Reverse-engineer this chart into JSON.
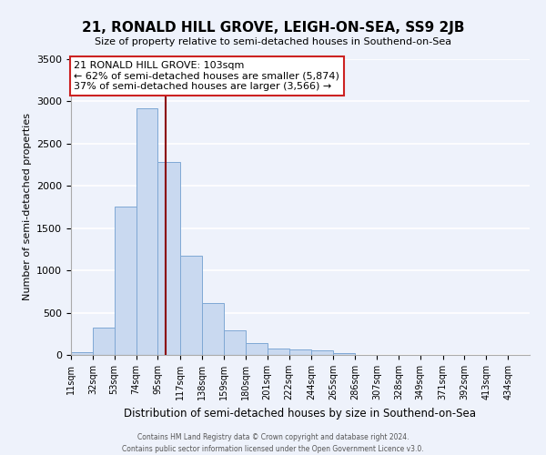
{
  "title": "21, RONALD HILL GROVE, LEIGH-ON-SEA, SS9 2JB",
  "subtitle": "Size of property relative to semi-detached houses in Southend-on-Sea",
  "xlabel": "Distribution of semi-detached houses by size in Southend-on-Sea",
  "ylabel": "Number of semi-detached properties",
  "bin_labels": [
    "11sqm",
    "32sqm",
    "53sqm",
    "74sqm",
    "95sqm",
    "117sqm",
    "138sqm",
    "159sqm",
    "180sqm",
    "201sqm",
    "222sqm",
    "244sqm",
    "265sqm",
    "286sqm",
    "307sqm",
    "328sqm",
    "349sqm",
    "371sqm",
    "392sqm",
    "413sqm",
    "434sqm"
  ],
  "bin_edges": [
    11,
    32,
    53,
    74,
    95,
    117,
    138,
    159,
    180,
    201,
    222,
    244,
    265,
    286,
    307,
    328,
    349,
    371,
    392,
    413,
    434,
    455
  ],
  "bar_heights": [
    30,
    320,
    1760,
    2920,
    2280,
    1170,
    610,
    290,
    140,
    75,
    60,
    50,
    20,
    0,
    0,
    0,
    0,
    0,
    0,
    0,
    0
  ],
  "bar_color": "#c9d9f0",
  "bar_edge_color": "#7fa8d4",
  "property_value": 103,
  "vline_color": "#8b0000",
  "annot_line1": "21 RONALD HILL GROVE: 103sqm",
  "annot_line2": "← 62% of semi-detached houses are smaller (5,874)",
  "annot_line3": "37% of semi-detached houses are larger (3,566) →",
  "ylim": [
    0,
    3500
  ],
  "yticks": [
    0,
    500,
    1000,
    1500,
    2000,
    2500,
    3000,
    3500
  ],
  "bg_color": "#eef2fb",
  "grid_color": "#ffffff",
  "footer_line1": "Contains HM Land Registry data © Crown copyright and database right 2024.",
  "footer_line2": "Contains public sector information licensed under the Open Government Licence v3.0."
}
